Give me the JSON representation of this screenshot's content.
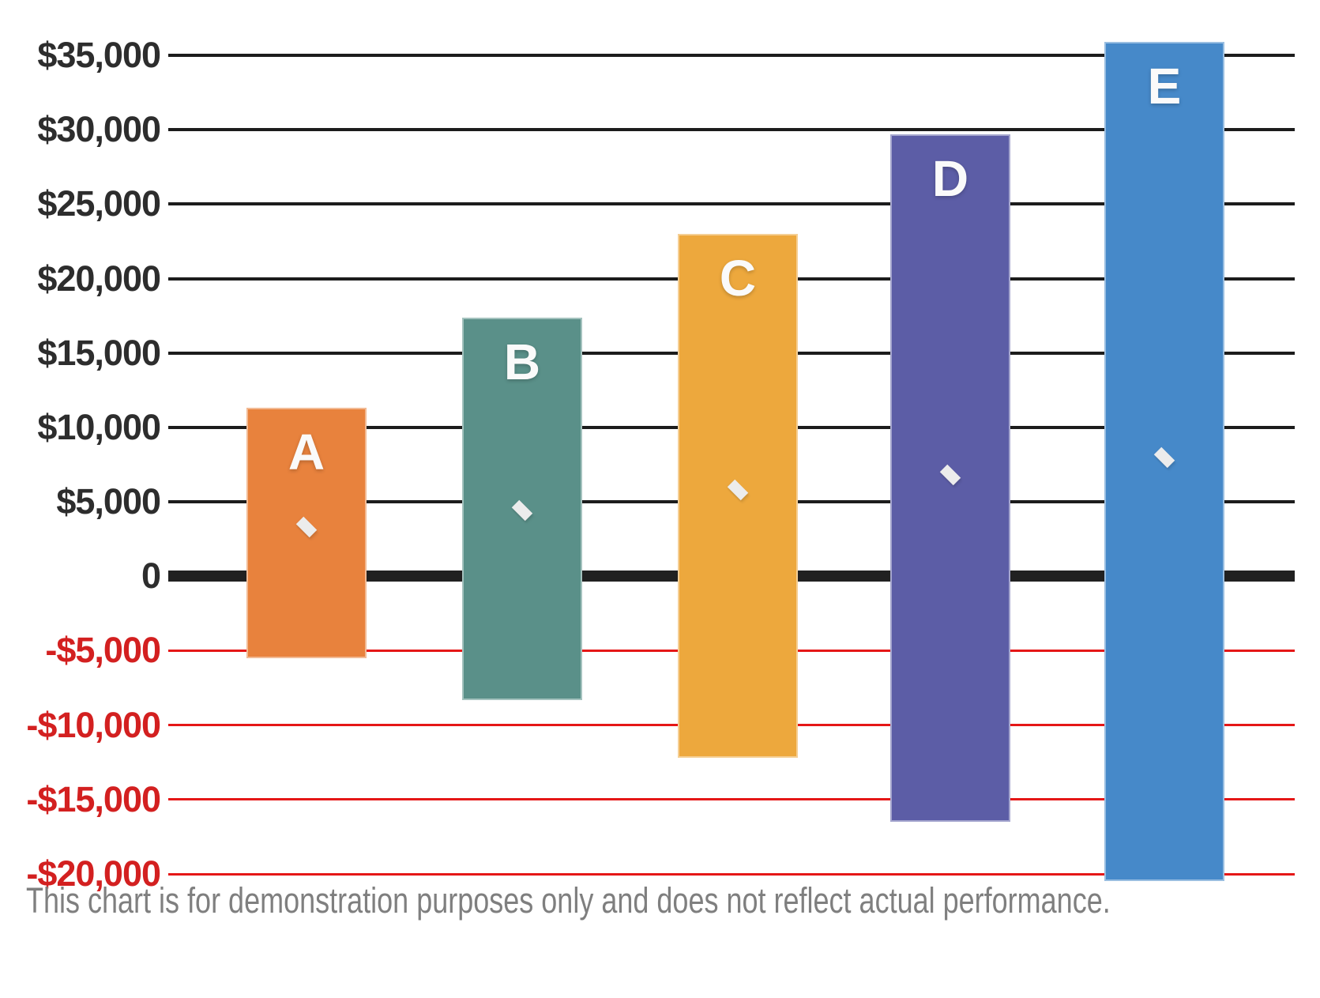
{
  "chart_data": {
    "type": "bar",
    "subtype": "floating_range_bars_with_diamond_markers",
    "title": "",
    "categories": [
      "A",
      "B",
      "C",
      "D",
      "E"
    ],
    "series": [
      {
        "label": "A",
        "low": -5500,
        "high": 11300,
        "marker": 3300,
        "color": "#E8823D"
      },
      {
        "label": "B",
        "low": -8300,
        "high": 17400,
        "marker": 4400,
        "color": "#5A9089"
      },
      {
        "label": "C",
        "low": -12200,
        "high": 23000,
        "marker": 5800,
        "color": "#EDA83D"
      },
      {
        "label": "D",
        "low": -16500,
        "high": 29700,
        "marker": 6800,
        "color": "#5C5DA6"
      },
      {
        "label": "E",
        "low": -20500,
        "high": 35900,
        "marker": 8000,
        "color": "#4689C9"
      }
    ],
    "marker_color": "#ECECEC",
    "bar_label_color": "#FAFAFA",
    "y_axis": {
      "min": -20000,
      "max": 35000,
      "tick_step": 5000,
      "ticks": [
        {
          "value": 35000,
          "label": "$35,000"
        },
        {
          "value": 30000,
          "label": "$30,000"
        },
        {
          "value": 25000,
          "label": "$25,000"
        },
        {
          "value": 20000,
          "label": "$20,000"
        },
        {
          "value": 15000,
          "label": "$15,000"
        },
        {
          "value": 10000,
          "label": "$10,000"
        },
        {
          "value": 5000,
          "label": "$5,000"
        },
        {
          "value": 0,
          "label": "0"
        },
        {
          "value": -5000,
          "label": "-$5,000"
        },
        {
          "value": -10000,
          "label": "-$10,000"
        },
        {
          "value": -15000,
          "label": "-$15,000"
        },
        {
          "value": -20000,
          "label": "-$20,000"
        }
      ]
    },
    "gridline_colors": {
      "positive": "#1c1c1c",
      "zero": "#212121",
      "negative": "#E51717"
    },
    "tick_label_colors": {
      "positive": "#2d2d2d",
      "zero": "#2d2d2d",
      "negative": "#D32020"
    },
    "grid": "horizontal-only",
    "legend_position": "none"
  },
  "caption": {
    "text": "This chart is for demonstration purposes only and does not reflect actual performance."
  }
}
